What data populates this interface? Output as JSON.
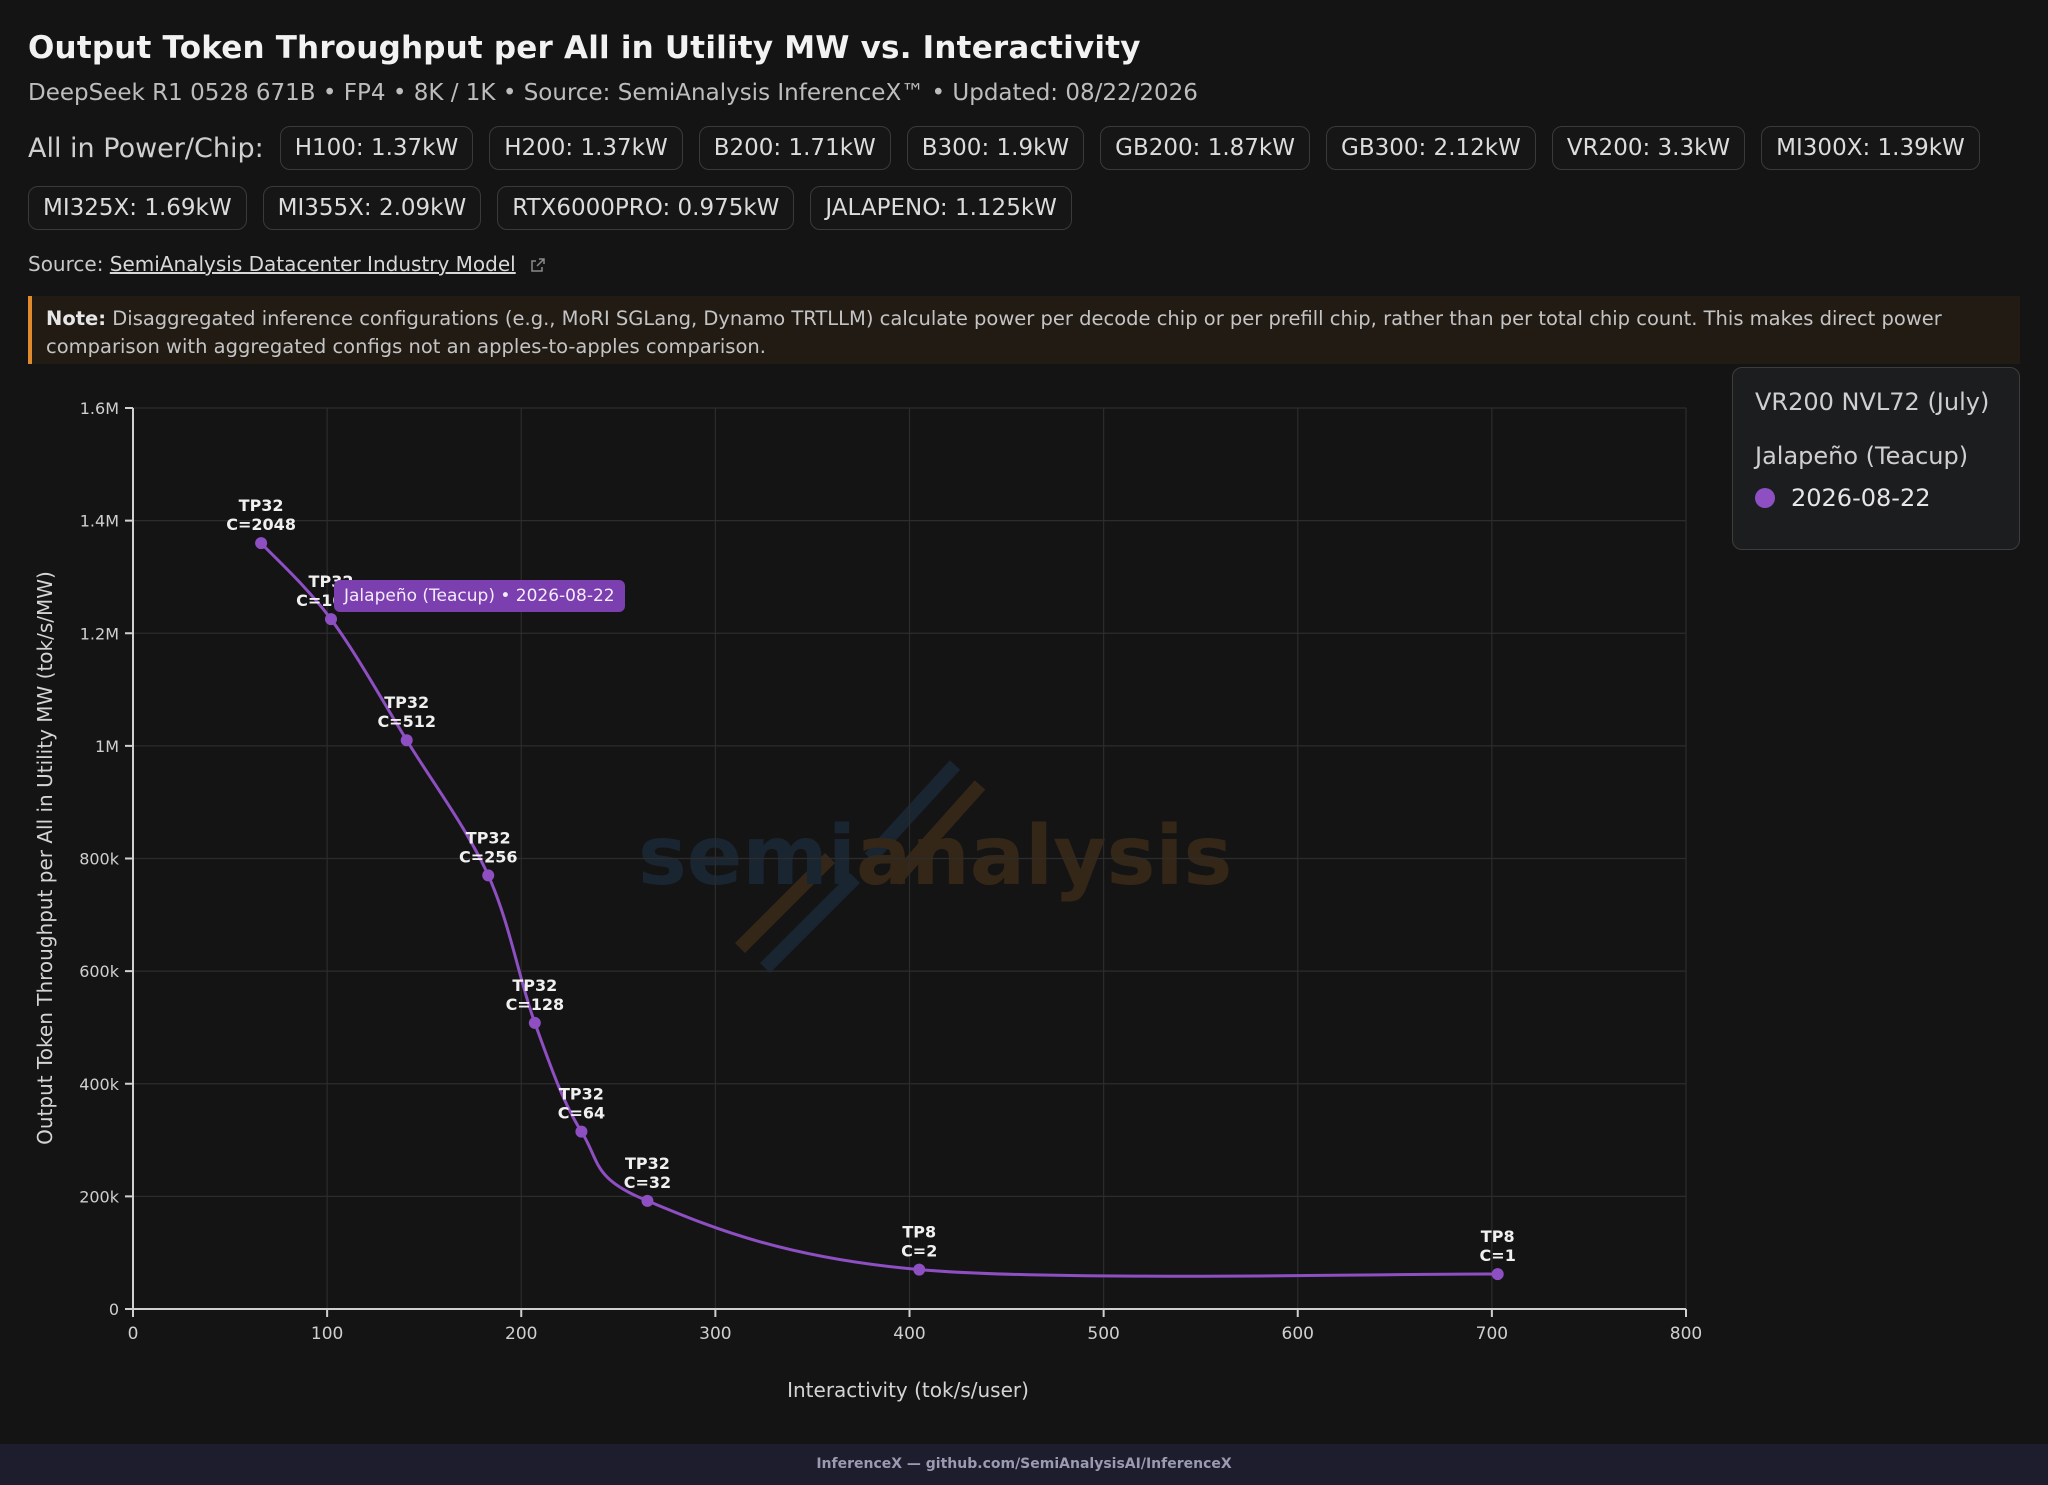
{
  "header": {
    "title": "Output Token Throughput per All in Utility MW vs. Interactivity",
    "subtitle": "DeepSeek R1 0528 671B • FP4 • 8K / 1K • Source: SemiAnalysis InferenceX™ • Updated: 08/22/2026"
  },
  "power": {
    "label": "All in Power/Chip:",
    "chips": [
      "H100: 1.37kW",
      "H200: 1.37kW",
      "B200: 1.71kW",
      "B300: 1.9kW",
      "GB200: 1.87kW",
      "GB300: 2.12kW",
      "VR200: 3.3kW",
      "MI300X: 1.39kW",
      "MI325X: 1.69kW",
      "MI355X: 2.09kW",
      "RTX6000PRO: 0.975kW",
      "JALAPENO: 1.125kW"
    ]
  },
  "source": {
    "prefix": "Source:",
    "link_text": "SemiAnalysis Datacenter Industry Model"
  },
  "note": {
    "label": "Note:",
    "text": "Disaggregated inference configurations (e.g., MoRI SGLang, Dynamo TRTLLM) calculate power per decode chip or per prefill chip, rather than per total chip count. This makes direct power comparison with aggregated configs not an apples-to-apples comparison."
  },
  "legend": {
    "title": "VR200 NVL72 (July)",
    "group": "Jalapeño (Teacup)",
    "item": "2026-08-22",
    "color": "#8e4fc2"
  },
  "tooltip": {
    "text": "Jalapeño (Teacup) • 2026-08-22"
  },
  "watermark": {
    "text_a": "semi",
    "text_b": "analysis"
  },
  "footer": {
    "text": "InferenceX — github.com/SemiAnalysisAI/InferenceX"
  },
  "chart_data": {
    "type": "line",
    "title": "Output Token Throughput per All in Utility MW vs. Interactivity",
    "xlabel": "Interactivity (tok/s/user)",
    "ylabel": "Output Token Throughput per All in Utility MW (tok/s/MW)",
    "xlim": [
      0,
      800
    ],
    "ylim": [
      0,
      1600000
    ],
    "x_ticks": [
      0,
      100,
      200,
      300,
      400,
      500,
      600,
      700,
      800
    ],
    "x_tick_labels": [
      "0",
      "100",
      "200",
      "300",
      "400",
      "500",
      "600",
      "700",
      "800"
    ],
    "y_ticks": [
      0,
      200000,
      400000,
      600000,
      800000,
      1000000,
      1200000,
      1400000,
      1600000
    ],
    "y_tick_labels": [
      "0",
      "200k",
      "400k",
      "600k",
      "800k",
      "1M",
      "1.2M",
      "1.4M",
      "1.6M"
    ],
    "grid": true,
    "legend_position": "top-right",
    "series": [
      {
        "name": "2026-08-22",
        "color": "#8e4fc2",
        "points": [
          {
            "x": 66,
            "y": 1360000,
            "label_top": "TP32",
            "label_bottom": "C=2048"
          },
          {
            "x": 102,
            "y": 1225000,
            "label_top": "TP32",
            "label_bottom": "C=1024"
          },
          {
            "x": 141,
            "y": 1010000,
            "label_top": "TP32",
            "label_bottom": "C=512"
          },
          {
            "x": 183,
            "y": 770000,
            "label_top": "TP32",
            "label_bottom": "C=256"
          },
          {
            "x": 207,
            "y": 508000,
            "label_top": "TP32",
            "label_bottom": "C=128"
          },
          {
            "x": 231,
            "y": 315000,
            "label_top": "TP32",
            "label_bottom": "C=64"
          },
          {
            "x": 265,
            "y": 192000,
            "label_top": "TP32",
            "label_bottom": "C=32"
          },
          {
            "x": 405,
            "y": 70000,
            "label_top": "TP8",
            "label_bottom": "C=2"
          },
          {
            "x": 703,
            "y": 62000,
            "label_top": "TP8",
            "label_bottom": "C=1"
          }
        ]
      }
    ]
  }
}
